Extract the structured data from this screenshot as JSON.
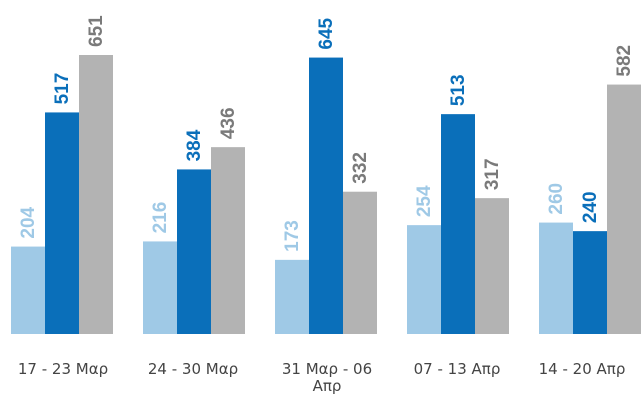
{
  "chart_data": {
    "type": "bar",
    "categories": [
      [
        "17 - 23 Μαρ"
      ],
      [
        "24 - 30 Μαρ"
      ],
      [
        "31 Μαρ - 06",
        "Απρ"
      ],
      [
        "07 - 13 Απρ"
      ],
      [
        "14 - 20 Απρ"
      ]
    ],
    "series": [
      {
        "values": [
          204,
          216,
          173,
          254,
          260
        ],
        "color": "#9fc9e6"
      },
      {
        "values": [
          517,
          384,
          645,
          513,
          240
        ],
        "color": "#0a6fba"
      },
      {
        "values": [
          651,
          436,
          332,
          317,
          582
        ],
        "color": "#b3b3b3"
      }
    ],
    "label_colors": [
      "#9fc9e6",
      "#0a6fba",
      "#7a7a7a"
    ],
    "title": "",
    "xlabel": "",
    "ylabel": "",
    "grid": false,
    "legend": "none"
  }
}
